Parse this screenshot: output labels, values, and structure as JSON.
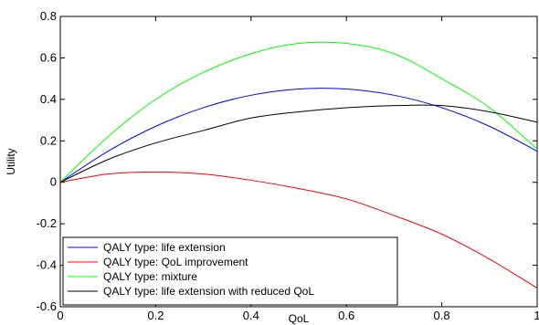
{
  "chart_data": {
    "type": "line",
    "xlabel": "QoL",
    "ylabel": "Utility",
    "xlim": [
      0,
      1
    ],
    "ylim": [
      -0.6,
      0.8
    ],
    "xticks": [
      0,
      0.2,
      0.4,
      0.6,
      0.8,
      1
    ],
    "yticks": [
      -0.6,
      -0.4,
      -0.2,
      0,
      0.2,
      0.4,
      0.6,
      0.8
    ],
    "xtick_labels": [
      "0",
      "0.2",
      "0.4",
      "0.6",
      "0.8",
      "1"
    ],
    "ytick_labels": [
      "-0.6",
      "-0.4",
      "-0.2",
      "0",
      "0.2",
      "0.4",
      "0.6",
      "0.8"
    ],
    "grid": false,
    "legend_position": "bottom-left",
    "x": [
      0,
      0.1,
      0.2,
      0.3,
      0.4,
      0.5,
      0.6,
      0.7,
      0.8,
      0.9,
      1.0
    ],
    "series": [
      {
        "name": "QALY type: life extension",
        "color": "#0000ff",
        "values": [
          0.0,
          0.15,
          0.27,
          0.36,
          0.42,
          0.45,
          0.45,
          0.42,
          0.36,
          0.27,
          0.15
        ]
      },
      {
        "name": "QALY type: QoL improvement",
        "color": "#ff0000",
        "values": [
          0.0,
          0.04,
          0.05,
          0.04,
          0.01,
          -0.03,
          -0.08,
          -0.16,
          -0.25,
          -0.37,
          -0.51
        ]
      },
      {
        "name": "QALY type: mixture",
        "color": "#00ff00",
        "values": [
          0.0,
          0.22,
          0.4,
          0.53,
          0.62,
          0.67,
          0.67,
          0.62,
          0.5,
          0.36,
          0.16
        ]
      },
      {
        "name": "QALY type: life extension with reduced QoL",
        "color": "#000000",
        "values": [
          0.0,
          0.11,
          0.19,
          0.25,
          0.31,
          0.34,
          0.36,
          0.37,
          0.37,
          0.34,
          0.29
        ]
      }
    ]
  }
}
